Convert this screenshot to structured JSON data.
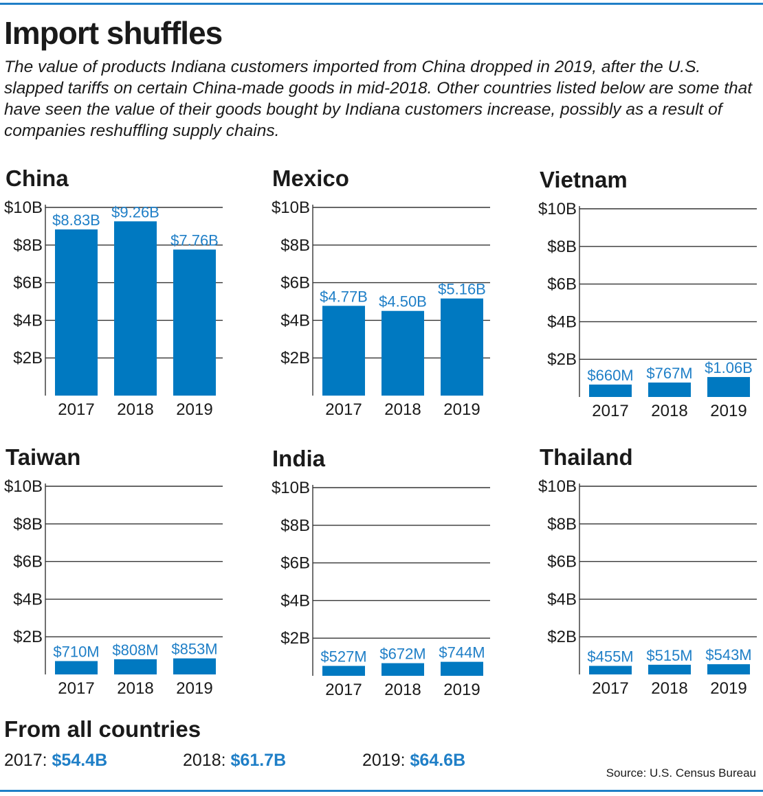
{
  "header": {
    "title": "Import shuffles",
    "subtitle": "The value of products Indiana customers imported from China dropped in 2019, after the U.S. slapped tariffs on certain China-made goods in mid-2018. Other countries listed below are some that have seen the value of their goods bought by Indiana customers increase, possibly as a result of companies reshuffling supply chains."
  },
  "colors": {
    "bar": "#0079c1",
    "accent": "#1f7fc7",
    "grid": "#333333"
  },
  "chart_data": [
    {
      "type": "bar",
      "title": "China",
      "categories": [
        "2017",
        "2018",
        "2019"
      ],
      "values": [
        8.83,
        9.26,
        7.76
      ],
      "value_labels": [
        "$8.83B",
        "$9.26B",
        "$7.76B"
      ],
      "yunit": "billions of dollars",
      "ylim": [
        0,
        10
      ],
      "yticks": [
        2,
        4,
        6,
        8,
        10
      ],
      "ytick_labels": [
        "$2B",
        "$4B",
        "$6B",
        "$8B",
        "$10B"
      ],
      "grid": true
    },
    {
      "type": "bar",
      "title": "Mexico",
      "categories": [
        "2017",
        "2018",
        "2019"
      ],
      "values": [
        4.77,
        4.5,
        5.16
      ],
      "value_labels": [
        "$4.77B",
        "$4.50B",
        "$5.16B"
      ],
      "yunit": "billions of dollars",
      "ylim": [
        0,
        10
      ],
      "yticks": [
        2,
        4,
        6,
        8,
        10
      ],
      "ytick_labels": [
        "$2B",
        "$4B",
        "$6B",
        "$8B",
        "$10B"
      ],
      "grid": true
    },
    {
      "type": "bar",
      "title": "Vietnam",
      "categories": [
        "2017",
        "2018",
        "2019"
      ],
      "values": [
        0.66,
        0.767,
        1.06
      ],
      "value_labels": [
        "$660M",
        "$767M",
        "$1.06B"
      ],
      "yunit": "billions of dollars",
      "ylim": [
        0,
        10
      ],
      "yticks": [
        2,
        4,
        6,
        8,
        10
      ],
      "ytick_labels": [
        "$2B",
        "$4B",
        "$6B",
        "$8B",
        "$10B"
      ],
      "grid": true
    },
    {
      "type": "bar",
      "title": "Taiwan",
      "categories": [
        "2017",
        "2018",
        "2019"
      ],
      "values": [
        0.71,
        0.808,
        0.853
      ],
      "value_labels": [
        "$710M",
        "$808M",
        "$853M"
      ],
      "yunit": "billions of dollars",
      "ylim": [
        0,
        10
      ],
      "yticks": [
        2,
        4,
        6,
        8,
        10
      ],
      "ytick_labels": [
        "$2B",
        "$4B",
        "$6B",
        "$8B",
        "$10B"
      ],
      "grid": true
    },
    {
      "type": "bar",
      "title": "India",
      "categories": [
        "2017",
        "2018",
        "2019"
      ],
      "values": [
        0.527,
        0.672,
        0.744
      ],
      "value_labels": [
        "$527M",
        "$672M",
        "$744M"
      ],
      "yunit": "billions of dollars",
      "ylim": [
        0,
        10
      ],
      "yticks": [
        2,
        4,
        6,
        8,
        10
      ],
      "ytick_labels": [
        "$2B",
        "$4B",
        "$6B",
        "$8B",
        "$10B"
      ],
      "grid": true
    },
    {
      "type": "bar",
      "title": "Thailand",
      "categories": [
        "2017",
        "2018",
        "2019"
      ],
      "values": [
        0.455,
        0.515,
        0.543
      ],
      "value_labels": [
        "$455M",
        "$515M",
        "$543M"
      ],
      "yunit": "billions of dollars",
      "ylim": [
        0,
        10
      ],
      "yticks": [
        2,
        4,
        6,
        8,
        10
      ],
      "ytick_labels": [
        "$2B",
        "$4B",
        "$6B",
        "$8B",
        "$10B"
      ],
      "grid": true
    }
  ],
  "totals": {
    "title": "From all countries",
    "items": [
      {
        "year": "2017:",
        "value": "$54.4B"
      },
      {
        "year": "2018:",
        "value": "$61.7B"
      },
      {
        "year": "2019:",
        "value": "$64.6B"
      }
    ]
  },
  "source": "Source: U.S. Census Bureau"
}
